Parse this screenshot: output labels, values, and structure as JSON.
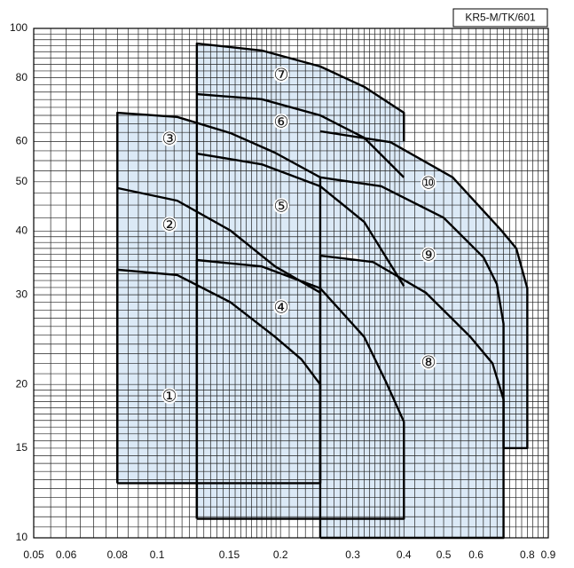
{
  "chart_data": {
    "type": "region",
    "label": "KR5-M/TK/601",
    "xscale": "log",
    "yscale": "log",
    "xlim": [
      0.05,
      0.9
    ],
    "ylim": [
      10,
      100
    ],
    "xticks": [
      0.05,
      0.06,
      0.08,
      0.1,
      0.15,
      0.2,
      0.3,
      0.4,
      0.5,
      0.6,
      0.8,
      0.9
    ],
    "yticks": [
      10,
      15,
      20,
      30,
      40,
      50,
      60,
      80,
      100
    ],
    "grid": true,
    "xminor": [
      0.055,
      0.065,
      0.07,
      0.075,
      0.085,
      0.09,
      0.095,
      0.105,
      0.11,
      0.115,
      0.12,
      0.125,
      0.13,
      0.135,
      0.14,
      0.145,
      0.155,
      0.16,
      0.165,
      0.17,
      0.175,
      0.18,
      0.185,
      0.19,
      0.195,
      0.21,
      0.22,
      0.23,
      0.24,
      0.25,
      0.26,
      0.27,
      0.28,
      0.29,
      0.31,
      0.32,
      0.33,
      0.34,
      0.35,
      0.36,
      0.37,
      0.38,
      0.39,
      0.425,
      0.45,
      0.475,
      0.525,
      0.55,
      0.575,
      0.625,
      0.65,
      0.675,
      0.7,
      0.725,
      0.75,
      0.775,
      0.825,
      0.85,
      0.875
    ],
    "yminor": [
      10.5,
      11,
      11.5,
      12,
      12.5,
      13,
      13.5,
      14,
      14.5,
      15.5,
      16,
      16.5,
      17,
      17.5,
      18,
      18.5,
      19,
      19.5,
      21,
      22,
      23,
      24,
      25,
      26,
      27,
      28,
      29,
      31,
      32,
      33,
      34,
      35,
      36,
      37,
      38,
      39,
      42.5,
      45,
      47.5,
      52.5,
      55,
      57.5,
      62.5,
      65,
      67.5,
      70,
      72.5,
      75,
      77.5,
      82.5,
      85,
      87.5,
      90,
      92.5,
      95,
      97.5
    ],
    "fill": "#dbe9f6",
    "line_color": "#000000",
    "series": [
      {
        "name": "①",
        "x": [
          0.08,
          0.08,
          0.112,
          0.151,
          0.194,
          0.225,
          0.25,
          0.25,
          0.08
        ],
        "y": [
          12.8,
          33.6,
          32.8,
          29,
          24.8,
          22.4,
          20,
          12.8,
          12.8
        ]
      },
      {
        "name": "②",
        "x": [
          0.25,
          0.194,
          0.151,
          0.112,
          0.08
        ],
        "y": [
          30.3,
          34.1,
          40.1,
          45.9,
          48.6
        ]
      },
      {
        "name": "③",
        "x": [
          0.08,
          0.08,
          0.112,
          0.151,
          0.194,
          0.25,
          0.25
        ],
        "y": [
          12.8,
          68.3,
          67.0,
          62.3,
          57.0,
          51,
          12.8
        ]
      },
      {
        "name": "④",
        "x": [
          0.125,
          0.125,
          0.18,
          0.25,
          0.32,
          0.361,
          0.4,
          0.4,
          0.125
        ],
        "y": [
          10.9,
          35.1,
          34.1,
          30.9,
          24.8,
          20.3,
          16.9,
          10.9,
          10.9
        ]
      },
      {
        "name": "⑤",
        "x": [
          0.4,
          0.32,
          0.25,
          0.18,
          0.125
        ],
        "y": [
          31.2,
          41.7,
          49.0,
          54.1,
          56.8
        ]
      },
      {
        "name": "⑥",
        "x": [
          0.4,
          0.32,
          0.25,
          0.18,
          0.125
        ],
        "y": [
          51,
          61.0,
          67.5,
          72.6,
          74.3
        ]
      },
      {
        "name": "⑦",
        "x": [
          0.4,
          0.4,
          0.32,
          0.25,
          0.18,
          0.125,
          0.125
        ],
        "y": [
          60,
          68.3,
          76.8,
          84.2,
          90.5,
          93.4,
          10.9
        ]
      },
      {
        "name": "⑧",
        "x": [
          0.25,
          0.25,
          0.336,
          0.452,
          0.581,
          0.658,
          0.7,
          0.7,
          0.25
        ],
        "y": [
          10,
          35.8,
          34.8,
          30.3,
          24.8,
          22.0,
          18.7,
          10,
          10
        ]
      },
      {
        "name": "⑨",
        "x": [
          0.7,
          0.7,
          0.674,
          0.626,
          0.5,
          0.352,
          0.25
        ],
        "y": [
          15,
          26.3,
          31.5,
          35.5,
          42.5,
          49.0,
          51
        ]
      },
      {
        "name": "⑩",
        "x": [
          0.25,
          0.371,
          0.526,
          0.692,
          0.752,
          0.8,
          0.8,
          0.7
        ],
        "y": [
          62.8,
          59.8,
          51,
          40.1,
          37,
          30.9,
          15,
          15
        ]
      }
    ]
  }
}
